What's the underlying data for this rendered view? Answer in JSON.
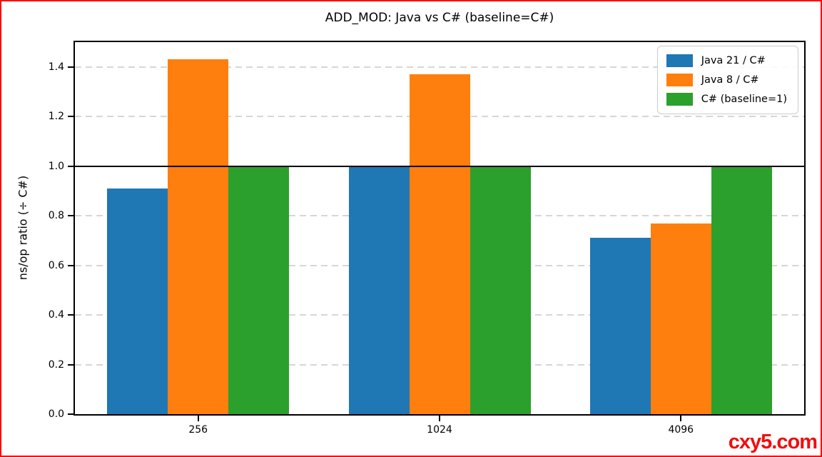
{
  "figure": {
    "frame_color": "#ff0000",
    "background": "#ffffff"
  },
  "watermark": {
    "text": "cxy5.com",
    "color": "#f20d0d"
  },
  "chart_data": {
    "type": "bar",
    "title": "ADD_MOD: Java vs C# (baseline=C#)",
    "xlabel": "",
    "ylabel": "ns/op ratio (÷ C#)",
    "categories": [
      "256",
      "1024",
      "4096"
    ],
    "series": [
      {
        "name": "Java 21 / C#",
        "color": "#1f77b4",
        "values": [
          0.91,
          1.0,
          0.71
        ]
      },
      {
        "name": "Java 8 / C#",
        "color": "#ff7f0e",
        "values": [
          1.43,
          1.37,
          0.77
        ]
      },
      {
        "name": "C# (baseline=1)",
        "color": "#2ca02c",
        "values": [
          1.0,
          1.0,
          1.0
        ]
      }
    ],
    "ylim": [
      0,
      1.5
    ],
    "yticks": [
      0.0,
      0.2,
      0.4,
      0.6,
      0.8,
      1.0,
      1.2,
      1.4
    ],
    "baseline": 1.0,
    "baseline_color": "#000000",
    "grid": "horizontal dashed",
    "grid_color": "#d6d6d6",
    "legend_position": "upper right"
  }
}
